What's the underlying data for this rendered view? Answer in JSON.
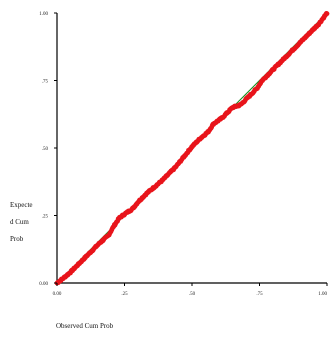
{
  "chart_data": {
    "type": "scatter",
    "subtype": "p-p plot",
    "title": "",
    "xlabel": "Observed Cum Prob",
    "ylabel_lines": [
      "Expecte",
      "d Cum",
      "Prob"
    ],
    "xlim": [
      0,
      1
    ],
    "ylim": [
      0,
      1
    ],
    "x_ticks": [
      {
        "value": 0,
        "label": "0.00"
      },
      {
        "value": 0.25,
        "label": ".25"
      },
      {
        "value": 0.5,
        "label": ".50"
      },
      {
        "value": 0.75,
        "label": ".75"
      },
      {
        "value": 1,
        "label": "1.00"
      }
    ],
    "y_ticks": [
      {
        "value": 0,
        "label": "0.00"
      },
      {
        "value": 0.25,
        "label": ".25"
      },
      {
        "value": 0.5,
        "label": ".50"
      },
      {
        "value": 0.75,
        "label": ".75"
      },
      {
        "value": 1,
        "label": "1.00"
      }
    ],
    "grid": false,
    "legend": "none",
    "colors": {
      "points": "#e8141b",
      "reference_line": "#1a8a1a",
      "axis": "#000000"
    },
    "reference_line": {
      "from": [
        0,
        0
      ],
      "to": [
        1,
        1
      ]
    },
    "series": [
      {
        "curve": [
          [
            0.0,
            0.0
          ],
          [
            0.02,
            0.015
          ],
          [
            0.05,
            0.04
          ],
          [
            0.08,
            0.07
          ],
          [
            0.1,
            0.09
          ],
          [
            0.13,
            0.12
          ],
          [
            0.16,
            0.15
          ],
          [
            0.19,
            0.175
          ],
          [
            0.21,
            0.21
          ],
          [
            0.23,
            0.24
          ],
          [
            0.25,
            0.255
          ],
          [
            0.28,
            0.275
          ],
          [
            0.3,
            0.3
          ],
          [
            0.33,
            0.33
          ],
          [
            0.36,
            0.355
          ],
          [
            0.39,
            0.38
          ],
          [
            0.42,
            0.41
          ],
          [
            0.44,
            0.43
          ],
          [
            0.46,
            0.455
          ],
          [
            0.48,
            0.48
          ],
          [
            0.5,
            0.505
          ],
          [
            0.53,
            0.535
          ],
          [
            0.56,
            0.56
          ],
          [
            0.58,
            0.59
          ],
          [
            0.61,
            0.61
          ],
          [
            0.63,
            0.63
          ],
          [
            0.65,
            0.65
          ],
          [
            0.68,
            0.66
          ],
          [
            0.71,
            0.69
          ],
          [
            0.74,
            0.72
          ],
          [
            0.76,
            0.75
          ],
          [
            0.79,
            0.78
          ],
          [
            0.82,
            0.81
          ],
          [
            0.85,
            0.84
          ],
          [
            0.88,
            0.87
          ],
          [
            0.91,
            0.9
          ],
          [
            0.94,
            0.93
          ],
          [
            0.97,
            0.96
          ],
          [
            1.0,
            1.0
          ]
        ]
      }
    ]
  }
}
